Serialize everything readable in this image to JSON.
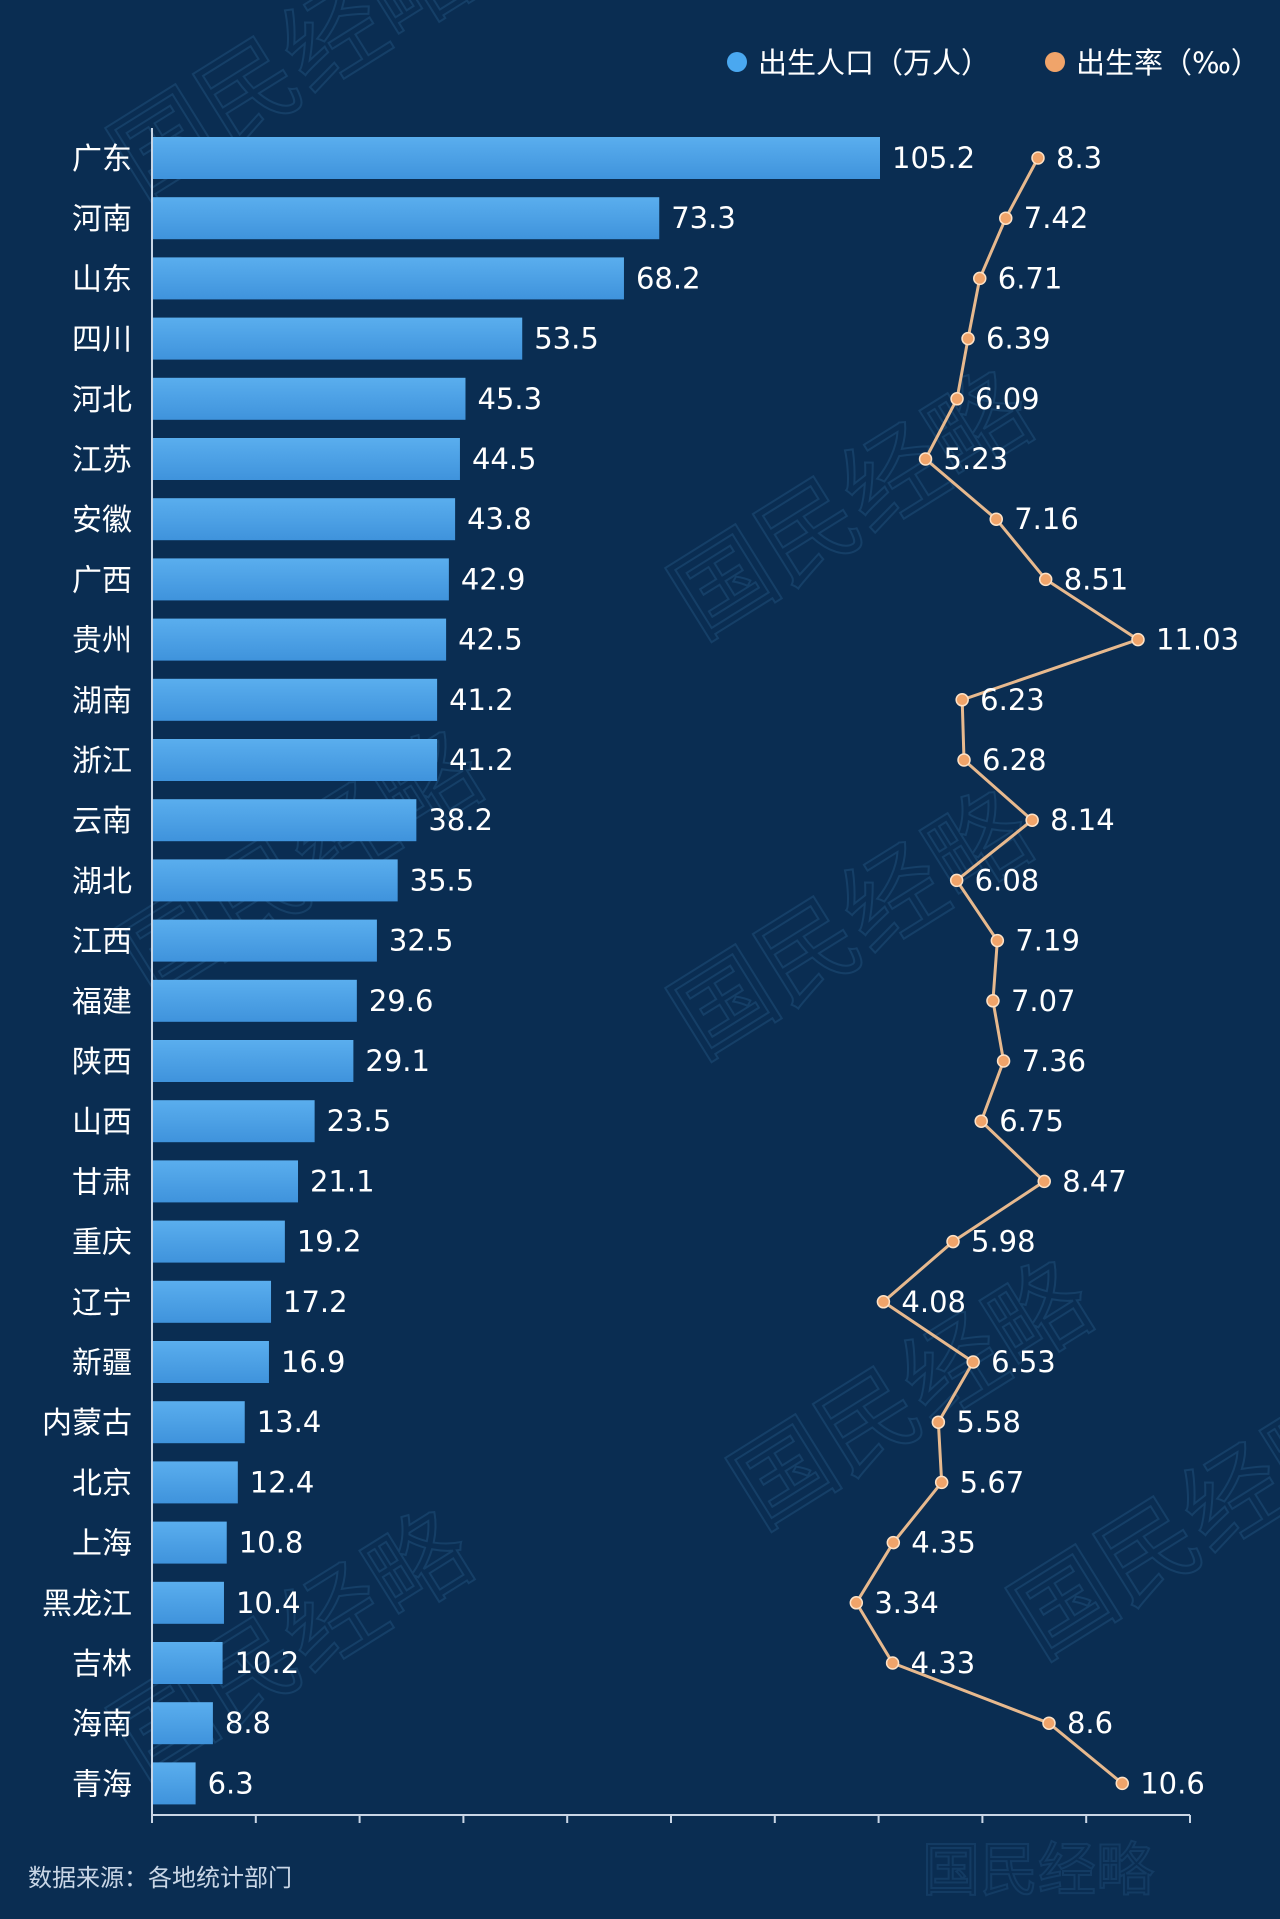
{
  "legend": {
    "births_label": "出生人口（万人）",
    "rate_label": "出生率（‰）"
  },
  "source": "数据来源：各地统计部门",
  "watermark_text": "国民经略",
  "colors": {
    "background": "#0a2d52",
    "bar": "#5aaeee",
    "bar_dark": "#3f93dc",
    "rate_line": "#e7b98e",
    "rate_point": "#f0a46a",
    "legend_births": "#4aa8f0",
    "legend_rate": "#f0a46a"
  },
  "chart_data": {
    "type": "bar",
    "orientation": "horizontal",
    "categories": [
      "广东",
      "河南",
      "山东",
      "四川",
      "河北",
      "江苏",
      "安徽",
      "广西",
      "贵州",
      "湖南",
      "浙江",
      "云南",
      "湖北",
      "江西",
      "福建",
      "陕西",
      "山西",
      "甘肃",
      "重庆",
      "辽宁",
      "新疆",
      "内蒙古",
      "北京",
      "上海",
      "黑龙江",
      "吉林",
      "海南",
      "青海"
    ],
    "series": [
      {
        "name": "出生人口（万人）",
        "type": "bar",
        "values": [
          105.2,
          73.3,
          68.2,
          53.5,
          45.3,
          44.5,
          43.8,
          42.9,
          42.5,
          41.2,
          41.2,
          38.2,
          35.5,
          32.5,
          29.6,
          29.1,
          23.5,
          21.1,
          19.2,
          17.2,
          16.9,
          13.4,
          12.4,
          10.8,
          10.4,
          10.2,
          8.8,
          6.3
        ],
        "labels": [
          "105.2",
          "73.3",
          "68.2",
          "53.5",
          "45.3",
          "44.5",
          "43.8",
          "42.9",
          "42.5",
          "41.2",
          "41.2",
          "38.2",
          "35.5",
          "32.5",
          "29.6",
          "29.1",
          "23.5",
          "21.1",
          "19.2",
          "17.2",
          "16.9",
          "13.4",
          "12.4",
          "10.8",
          "10.4",
          "10.2",
          "8.8",
          "6.3"
        ]
      },
      {
        "name": "出生率（‰）",
        "type": "line",
        "values": [
          8.3,
          7.42,
          6.71,
          6.39,
          6.09,
          5.23,
          7.16,
          8.51,
          11.03,
          6.23,
          6.28,
          8.14,
          6.08,
          7.19,
          7.07,
          7.36,
          6.75,
          8.47,
          5.98,
          4.08,
          6.53,
          5.58,
          5.67,
          4.35,
          3.34,
          4.33,
          8.6,
          10.6
        ],
        "labels": [
          "8.3",
          "7.42",
          "6.71",
          "6.39",
          "6.09",
          "5.23",
          "7.16",
          "8.51",
          "11.03",
          "6.23",
          "6.28",
          "8.14",
          "6.08",
          "7.19",
          "7.07",
          "7.36",
          "6.75",
          "8.47",
          "5.98",
          "4.08",
          "6.53",
          "5.58",
          "5.67",
          "4.35",
          "3.34",
          "4.33",
          "8.6",
          "10.6"
        ]
      }
    ],
    "xlim": [
      0,
      150
    ],
    "rate_xlim": [
      0,
      12
    ],
    "legend_position": "top-right",
    "grid": false
  }
}
